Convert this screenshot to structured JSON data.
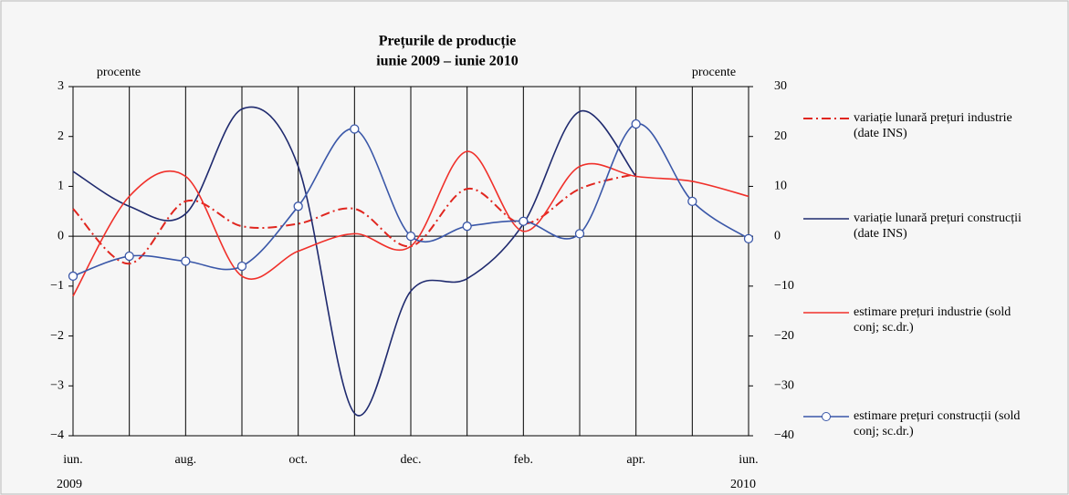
{
  "chart_data": {
    "type": "line",
    "title": "Prețurile de producție",
    "subtitle": "iunie 2009 – iunie 2010",
    "ylabel": "procente",
    "y2label": "procente",
    "categories": [
      "iun.",
      null,
      "aug.",
      null,
      "oct.",
      null,
      "dec.",
      null,
      "feb.",
      null,
      "apr.",
      null,
      "iun."
    ],
    "year_labels": [
      "2009",
      "2010"
    ],
    "ylim": [
      -4,
      3
    ],
    "yticks": [
      {
        "value": -4,
        "label": "−4"
      },
      {
        "value": -3,
        "label": "−3"
      },
      {
        "value": -2,
        "label": "−2"
      },
      {
        "value": -1,
        "label": "−1"
      },
      0,
      1,
      2,
      3
    ],
    "y2lim": [
      -40,
      30
    ],
    "y2ticks": [
      {
        "value": -40,
        "label": "−40"
      },
      {
        "value": -30,
        "label": "−30"
      },
      {
        "value": -20,
        "label": "−20"
      },
      {
        "value": -10,
        "label": "−10"
      },
      0,
      10,
      20,
      30
    ],
    "grid": true,
    "legend": "right",
    "series": [
      {
        "name": "variație lunară prețuri industrie (date INS)",
        "color": "#e0261f",
        "dash": "dashdot",
        "values": [
          0.55,
          -0.55,
          0.7,
          0.2,
          0.25,
          0.55,
          -0.2,
          0.95,
          0.25,
          0.95,
          1.25,
          null,
          null
        ]
      },
      {
        "name": "variație lunară prețuri construcții (date INS)",
        "color": "#1f2a6e",
        "values": [
          1.3,
          0.6,
          0.45,
          2.55,
          1.4,
          -3.55,
          -1.1,
          -0.85,
          0.25,
          2.5,
          1.2,
          null,
          null
        ]
      },
      {
        "name": "estimare prețuri industrie (sold conj; sc.dr.)",
        "color": "#f0302a",
        "axis": "y2",
        "values": [
          -12,
          8,
          12,
          -8,
          -3,
          0.5,
          -2,
          17,
          1,
          14,
          12,
          11,
          8
        ]
      },
      {
        "name": "estimare prețuri construcții (sold conj; sc.dr.)",
        "color": "#3a57a8",
        "axis": "y2",
        "marker": true,
        "values": [
          -8,
          -4,
          -5,
          -6,
          6,
          21.5,
          0,
          2,
          3,
          0.5,
          22.5,
          7,
          -0.5
        ]
      }
    ]
  }
}
